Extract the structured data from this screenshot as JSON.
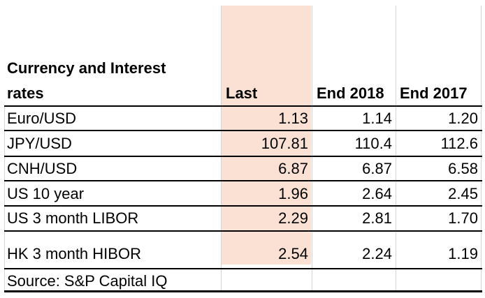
{
  "table": {
    "title_line1": "Currency and Interest",
    "title_line2": "rates",
    "columns": [
      "Last",
      "End 2018",
      "End 2017"
    ],
    "rows": [
      {
        "label": "Euro/USD",
        "values": [
          "1.13",
          "1.14",
          "1.20"
        ]
      },
      {
        "label": "JPY/USD",
        "values": [
          "107.81",
          "110.4",
          "112.6"
        ]
      },
      {
        "label": "CNH/USD",
        "values": [
          "6.87",
          "6.87",
          "6.58"
        ]
      },
      {
        "label": "US 10 year",
        "values": [
          "1.96",
          "2.64",
          "2.45"
        ]
      },
      {
        "label": "US 3 month LIBOR",
        "values": [
          "2.29",
          "2.81",
          "1.70"
        ]
      },
      {
        "label": "HK 3 month HIBOR",
        "values": [
          "2.54",
          "2.24",
          "1.19"
        ]
      }
    ],
    "source": "Source: S&P Capital IQ"
  },
  "colors": {
    "highlight_column": "#fbe1d3",
    "rule": "#000000",
    "gridline": "#d4d4d4"
  }
}
